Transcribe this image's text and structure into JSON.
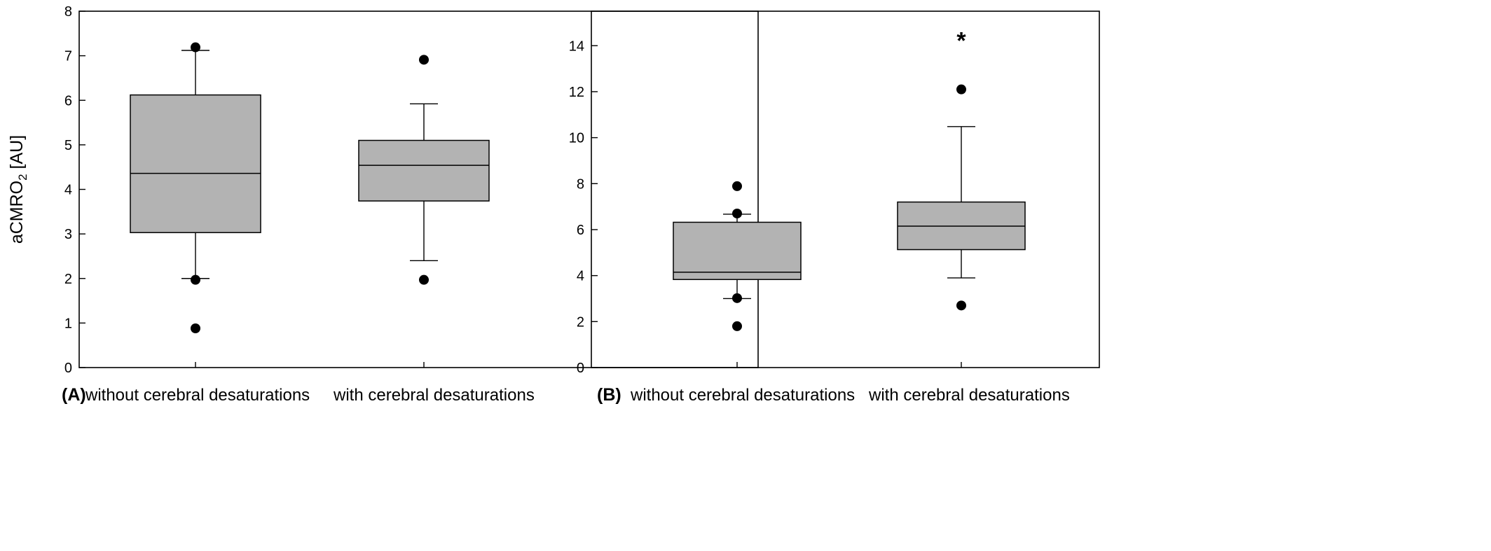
{
  "chart_data": [
    {
      "type": "box",
      "panel_label": "(A)",
      "ylabel_main": "aCMRO",
      "ylabel_sub": "2",
      "ylabel_unit": " [AU]",
      "ylim": [
        0,
        8
      ],
      "yticks": [
        0,
        1,
        2,
        3,
        4,
        5,
        6,
        7,
        8
      ],
      "grid": false,
      "categories": [
        "without cerebral desaturations",
        "with cerebral desaturations"
      ],
      "boxes": [
        {
          "whisker_low": 2.0,
          "q1": 3.03,
          "median": 4.36,
          "q3": 6.12,
          "whisker_high": 7.12,
          "outliers": [
            7.19,
            1.97,
            0.88
          ]
        },
        {
          "whisker_low": 2.4,
          "q1": 3.74,
          "median": 4.54,
          "q3": 5.1,
          "whisker_high": 5.92,
          "outliers": [
            6.91,
            1.97
          ]
        }
      ],
      "annotations": []
    },
    {
      "type": "box",
      "panel_label": "(B)",
      "ylim": [
        0,
        15.5
      ],
      "yticks": [
        0,
        2,
        4,
        6,
        8,
        10,
        12,
        14
      ],
      "grid": false,
      "categories": [
        "without cerebral desaturations",
        "with cerebral desaturations"
      ],
      "boxes": [
        {
          "whisker_low": 3.0,
          "q1": 3.83,
          "median": 4.15,
          "q3": 6.32,
          "whisker_high": 6.67,
          "outliers": [
            7.89,
            6.7,
            3.02,
            1.8
          ]
        },
        {
          "whisker_low": 3.9,
          "q1": 5.13,
          "median": 6.15,
          "q3": 7.2,
          "whisker_high": 10.48,
          "outliers": [
            12.1,
            2.7
          ]
        }
      ],
      "annotations": [
        {
          "category_index": 1,
          "text": "*",
          "y": 14.3
        }
      ]
    }
  ]
}
